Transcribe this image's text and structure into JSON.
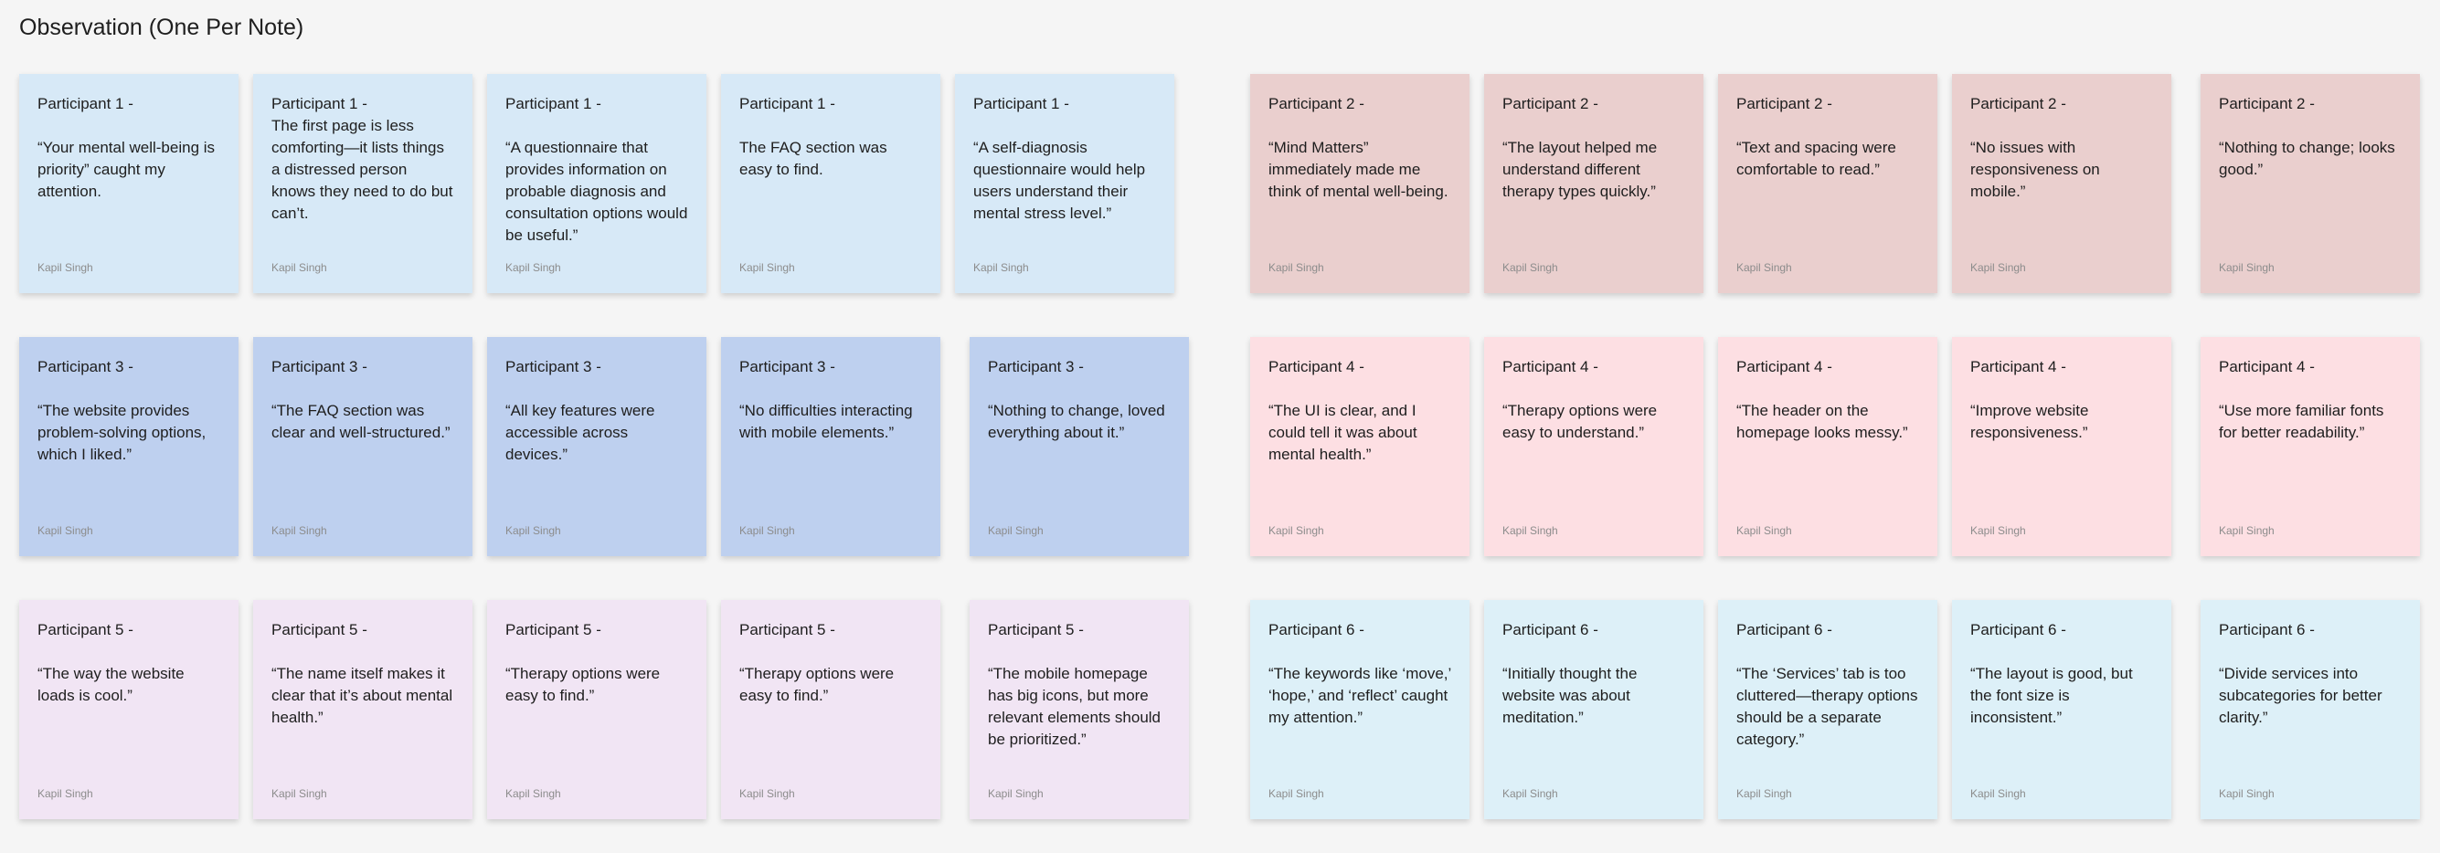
{
  "board": {
    "title": "Observation (One Per Note)"
  },
  "colors": {
    "blue": "#d7e9f7",
    "rose": "#eacfce",
    "cornflower": "#bed0ef",
    "pink": "#fddfe3",
    "lavender": "#f1e5f4",
    "sky": "#ddf0f8"
  },
  "notes": [
    {
      "participant": "Participant 1 -",
      "text": "“Your mental well-being is priority” caught my attention.",
      "author": "Kapil Singh",
      "color": "blue",
      "gap": true
    },
    {
      "participant": "Participant 1 -",
      "text": "The first page is less comforting—it lists things a distressed person knows they need to do but can’t.",
      "author": "Kapil Singh",
      "color": "blue",
      "gap": false
    },
    {
      "participant": "Participant 1 -",
      "text": "“A questionnaire that provides information on probable diagnosis and consultation options would be useful.”",
      "author": "Kapil Singh",
      "color": "blue",
      "gap": true
    },
    {
      "participant": "Participant 1 -",
      "text": "The FAQ section was easy to find.",
      "author": "Kapil Singh",
      "color": "blue",
      "gap": true
    },
    {
      "participant": "Participant 1 -",
      "text": "“A self-diagnosis questionnaire would help users understand their mental stress level.”",
      "author": "Kapil Singh",
      "color": "blue",
      "gap": true
    },
    {
      "participant": "Participant 2 -",
      "text": "“Mind Matters” immediately made me think of mental well-being.",
      "author": "Kapil Singh",
      "color": "rose",
      "gap": true
    },
    {
      "participant": "Participant 2 -",
      "text": "“The layout helped me understand different therapy types quickly.”",
      "author": "Kapil Singh",
      "color": "rose",
      "gap": true
    },
    {
      "participant": "Participant 2 -",
      "text": "“Text and spacing were comfortable to read.”",
      "author": "Kapil Singh",
      "color": "rose",
      "gap": true
    },
    {
      "participant": "Participant 2 -",
      "text": "“No issues with responsiveness on mobile.”",
      "author": "Kapil Singh",
      "color": "rose",
      "gap": true
    },
    {
      "participant": "Participant 2 -",
      "text": "“Nothing to change; looks good.”",
      "author": "Kapil Singh",
      "color": "rose",
      "gap": true
    },
    {
      "participant": "Participant 3 -",
      "text": " “The website provides problem-solving options, which I liked.”",
      "author": "Kapil Singh",
      "color": "cornflower",
      "gap": true
    },
    {
      "participant": "Participant 3 -",
      "text": "“The FAQ section was clear and well-structured.”",
      "author": "Kapil Singh",
      "color": "cornflower",
      "gap": true
    },
    {
      "participant": "Participant 3 -",
      "text": "“All key features were accessible across devices.”",
      "author": "Kapil Singh",
      "color": "cornflower",
      "gap": true
    },
    {
      "participant": "Participant 3 -",
      "text": "“No difficulties interacting with mobile elements.”",
      "author": "Kapil Singh",
      "color": "cornflower",
      "gap": true
    },
    {
      "participant": "Participant 3 -",
      "text": "“Nothing to change, loved everything about it.”",
      "author": "Kapil Singh",
      "color": "cornflower",
      "gap": true
    },
    {
      "participant": "Participant 4 -",
      "text": " “The UI is clear, and I could tell it was about mental health.”",
      "author": "Kapil Singh",
      "color": "pink",
      "gap": true
    },
    {
      "participant": "Participant 4 -",
      "text": " “Therapy options were easy to understand.”",
      "author": "Kapil Singh",
      "color": "pink",
      "gap": true
    },
    {
      "participant": "Participant 4 -",
      "text": " “The header on the homepage looks messy.”",
      "author": "Kapil Singh",
      "color": "pink",
      "gap": true
    },
    {
      "participant": "Participant 4 -",
      "text": " “Improve website responsiveness.”",
      "author": "Kapil Singh",
      "color": "pink",
      "gap": true
    },
    {
      "participant": "Participant 4 -",
      "text": "“Use more familiar fonts for better readability.”",
      "author": "Kapil Singh",
      "color": "pink",
      "gap": true
    },
    {
      "participant": "Participant 5 -",
      "text": " “The way the website loads is cool.”",
      "author": "Kapil Singh",
      "color": "lavender",
      "gap": true
    },
    {
      "participant": "Participant 5 -",
      "text": " “The name itself makes it clear that it’s about mental health.”",
      "author": "Kapil Singh",
      "color": "lavender",
      "gap": true
    },
    {
      "participant": "Participant 5 -",
      "text": " “Therapy options were easy to find.”",
      "author": "Kapil Singh",
      "color": "lavender",
      "gap": true
    },
    {
      "participant": "Participant 5 -",
      "text": " “Therapy options were easy to find.”",
      "author": "Kapil Singh",
      "color": "lavender",
      "gap": true
    },
    {
      "participant": "Participant 5 -",
      "text": "“The mobile homepage has big icons, but more relevant elements should be prioritized.”",
      "author": "Kapil Singh",
      "color": "lavender",
      "gap": true
    },
    {
      "participant": "Participant 6 -",
      "text": "“The keywords like ‘move,’ ‘hope,’ and ‘reflect’ caught my attention.”",
      "author": "Kapil Singh",
      "color": "sky",
      "gap": true
    },
    {
      "participant": "Participant 6 -",
      "text": "“Initially thought the website was about meditation.”",
      "author": "Kapil Singh",
      "color": "sky",
      "gap": true
    },
    {
      "participant": "Participant 6 -",
      "text": "“The ‘Services’ tab is too cluttered—therapy options should be a separate category.”",
      "author": "Kapil Singh",
      "color": "sky",
      "gap": true
    },
    {
      "participant": "Participant 6 -",
      "text": "“The layout is good, but the font size is inconsistent.”",
      "author": "Kapil Singh",
      "color": "sky",
      "gap": true
    },
    {
      "participant": "Participant 6 -",
      "text": "“Divide services into subcategories for better clarity.”",
      "author": "Kapil Singh",
      "color": "sky",
      "gap": true
    }
  ]
}
